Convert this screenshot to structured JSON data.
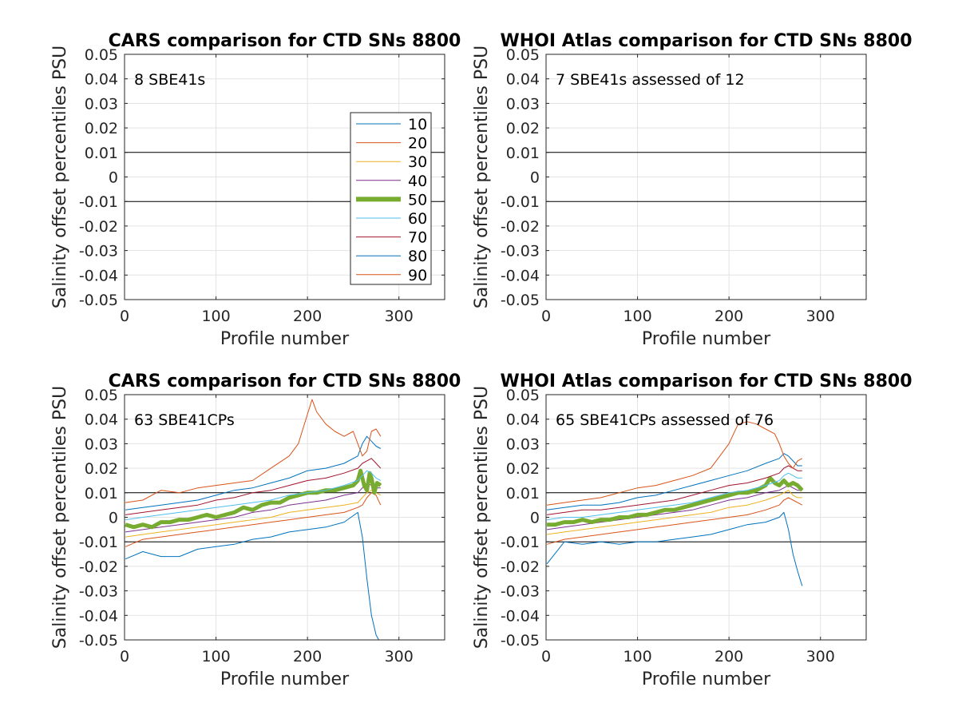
{
  "figure": {
    "panel_titles": [
      "CARS comparison for CTD SNs 8800",
      "WHOI Atlas comparison for CTD SNs 8800",
      "CARS comparison for CTD SNs 8800",
      "WHOI Atlas comparison for CTD SNs 8800"
    ]
  },
  "chart_data": [
    {
      "type": "line",
      "title": "CARS comparison for CTD SNs 8800",
      "xlabel": "Profile number",
      "ylabel": "Salinity offset percentiles PSU",
      "annotation": "8 SBE41s",
      "xlim": [
        0,
        350
      ],
      "ylim": [
        -0.05,
        0.05
      ],
      "xticks": [
        "0",
        "100",
        "200",
        "300"
      ],
      "yticks": [
        "-0.05",
        "-0.04",
        "-0.03",
        "-0.02",
        "-0.01",
        "0",
        "0.01",
        "0.02",
        "0.03",
        "0.04",
        "0.05"
      ],
      "grid": true,
      "reference_lines": [
        0.01,
        -0.01
      ],
      "legend": {
        "placement": "right",
        "entries": [
          "10",
          "20",
          "30",
          "40",
          "50",
          "60",
          "70",
          "80",
          "90"
        ]
      },
      "series": []
    },
    {
      "type": "line",
      "title": "WHOI Atlas comparison for CTD SNs 8800",
      "xlabel": "Profile number",
      "ylabel": "Salinity offset percentiles PSU",
      "annotation": "7 SBE41s assessed of 12",
      "xlim": [
        0,
        350
      ],
      "ylim": [
        -0.05,
        0.05
      ],
      "xticks": [
        "0",
        "100",
        "200",
        "300"
      ],
      "yticks": [
        "-0.05",
        "-0.04",
        "-0.03",
        "-0.02",
        "-0.01",
        "0",
        "0.01",
        "0.02",
        "0.03",
        "0.04",
        "0.05"
      ],
      "grid": true,
      "reference_lines": [
        0.01,
        -0.01
      ],
      "series": []
    },
    {
      "type": "line",
      "title": "CARS comparison for CTD SNs 8800",
      "xlabel": "Profile number",
      "ylabel": "Salinity offset percentiles PSU",
      "annotation": "63 SBE41CPs",
      "xlim": [
        0,
        350
      ],
      "ylim": [
        -0.05,
        0.05
      ],
      "xticks": [
        "0",
        "100",
        "200",
        "300"
      ],
      "yticks": [
        "-0.05",
        "-0.04",
        "-0.03",
        "-0.02",
        "-0.01",
        "0",
        "0.01",
        "0.02",
        "0.03",
        "0.04",
        "0.05"
      ],
      "grid": true,
      "reference_lines": [
        0.01,
        -0.01
      ],
      "series": [
        {
          "name": "10",
          "color": "#0072BD",
          "x": [
            1,
            20,
            40,
            60,
            80,
            100,
            120,
            140,
            160,
            180,
            200,
            220,
            240,
            255,
            260,
            265,
            270,
            275,
            278
          ],
          "y": [
            -0.017,
            -0.014,
            -0.016,
            -0.016,
            -0.013,
            -0.012,
            -0.011,
            -0.009,
            -0.008,
            -0.006,
            -0.005,
            -0.004,
            -0.002,
            0.002,
            -0.008,
            -0.025,
            -0.04,
            -0.048,
            -0.05
          ]
        },
        {
          "name": "20",
          "color": "#D95319",
          "x": [
            1,
            20,
            40,
            60,
            80,
            100,
            120,
            140,
            160,
            180,
            200,
            220,
            240,
            255,
            260,
            265,
            270,
            275,
            280
          ],
          "y": [
            -0.012,
            -0.009,
            -0.008,
            -0.007,
            -0.006,
            -0.005,
            -0.004,
            -0.003,
            -0.002,
            -0.001,
            0.0,
            0.001,
            0.002,
            0.004,
            0.005,
            0.008,
            0.01,
            0.009,
            0.005
          ]
        },
        {
          "name": "30",
          "color": "#EDB120",
          "x": [
            1,
            20,
            40,
            60,
            80,
            100,
            120,
            140,
            160,
            180,
            200,
            220,
            240,
            255,
            260,
            265,
            270,
            275,
            280
          ],
          "y": [
            -0.008,
            -0.007,
            -0.006,
            -0.005,
            -0.004,
            -0.003,
            -0.002,
            -0.001,
            0.0,
            0.002,
            0.003,
            0.004,
            0.005,
            0.006,
            0.008,
            0.01,
            0.011,
            0.01,
            0.009
          ]
        },
        {
          "name": "40",
          "color": "#7E2F8E",
          "x": [
            1,
            20,
            40,
            60,
            80,
            100,
            120,
            140,
            160,
            180,
            200,
            220,
            240,
            255,
            260,
            265,
            270,
            275,
            280
          ],
          "y": [
            -0.006,
            -0.005,
            -0.004,
            -0.003,
            -0.002,
            -0.001,
            0.0,
            0.002,
            0.003,
            0.005,
            0.006,
            0.007,
            0.009,
            0.01,
            0.012,
            0.014,
            0.013,
            0.012,
            0.012
          ]
        },
        {
          "name": "50",
          "color": "#77AC30",
          "x": [
            1,
            10,
            20,
            30,
            40,
            50,
            60,
            70,
            80,
            90,
            100,
            110,
            120,
            130,
            140,
            150,
            160,
            170,
            180,
            190,
            200,
            210,
            220,
            230,
            240,
            250,
            255,
            258,
            262,
            265,
            268,
            270,
            273,
            276,
            280
          ],
          "y": [
            -0.003,
            -0.004,
            -0.003,
            -0.004,
            -0.002,
            -0.002,
            -0.001,
            -0.001,
            0.0,
            0.001,
            0.0,
            0.001,
            0.002,
            0.004,
            0.003,
            0.005,
            0.006,
            0.006,
            0.008,
            0.009,
            0.01,
            0.01,
            0.011,
            0.011,
            0.012,
            0.013,
            0.015,
            0.019,
            0.013,
            0.011,
            0.018,
            0.016,
            0.01,
            0.014,
            0.013
          ]
        },
        {
          "name": "60",
          "color": "#4DBEEE",
          "x": [
            1,
            20,
            40,
            60,
            80,
            100,
            120,
            140,
            160,
            180,
            200,
            220,
            240,
            255,
            260,
            265,
            270,
            275,
            280
          ],
          "y": [
            -0.001,
            0.0,
            0.001,
            0.002,
            0.003,
            0.004,
            0.005,
            0.006,
            0.007,
            0.009,
            0.01,
            0.011,
            0.013,
            0.015,
            0.017,
            0.019,
            0.018,
            0.016,
            0.015
          ]
        },
        {
          "name": "70",
          "color": "#A2142F",
          "x": [
            1,
            20,
            40,
            60,
            80,
            100,
            120,
            140,
            160,
            180,
            200,
            220,
            240,
            255,
            260,
            265,
            270,
            275,
            280
          ],
          "y": [
            0.001,
            0.002,
            0.003,
            0.004,
            0.005,
            0.007,
            0.008,
            0.01,
            0.011,
            0.013,
            0.015,
            0.016,
            0.018,
            0.02,
            0.022,
            0.023,
            0.024,
            0.022,
            0.02
          ]
        },
        {
          "name": "80",
          "color": "#0072BD",
          "x": [
            1,
            20,
            40,
            60,
            80,
            100,
            120,
            140,
            160,
            180,
            200,
            220,
            240,
            255,
            260,
            265,
            270,
            275,
            280
          ],
          "y": [
            0.003,
            0.004,
            0.005,
            0.006,
            0.007,
            0.009,
            0.011,
            0.012,
            0.014,
            0.016,
            0.019,
            0.02,
            0.022,
            0.025,
            0.03,
            0.033,
            0.031,
            0.029,
            0.028
          ]
        },
        {
          "name": "90",
          "color": "#D95319",
          "x": [
            1,
            20,
            40,
            60,
            80,
            100,
            120,
            140,
            160,
            180,
            190,
            200,
            205,
            210,
            220,
            230,
            240,
            250,
            255,
            260,
            265,
            270,
            275,
            280
          ],
          "y": [
            0.006,
            0.007,
            0.011,
            0.01,
            0.012,
            0.013,
            0.014,
            0.015,
            0.02,
            0.025,
            0.03,
            0.042,
            0.048,
            0.043,
            0.038,
            0.035,
            0.033,
            0.035,
            0.03,
            0.025,
            0.027,
            0.035,
            0.036,
            0.033
          ]
        }
      ]
    },
    {
      "type": "line",
      "title": "WHOI Atlas comparison for CTD SNs 8800",
      "xlabel": "Profile number",
      "ylabel": "Salinity offset percentiles PSU",
      "annotation": "65 SBE41CPs assessed of 76",
      "xlim": [
        0,
        350
      ],
      "ylim": [
        -0.05,
        0.05
      ],
      "xticks": [
        "0",
        "100",
        "200",
        "300"
      ],
      "yticks": [
        "-0.05",
        "-0.04",
        "-0.03",
        "-0.02",
        "-0.01",
        "0",
        "0.01",
        "0.02",
        "0.03",
        "0.04",
        "0.05"
      ],
      "grid": true,
      "reference_lines": [
        0.01,
        -0.01
      ],
      "series": [
        {
          "name": "10",
          "color": "#0072BD",
          "x": [
            1,
            20,
            40,
            60,
            80,
            100,
            120,
            140,
            160,
            180,
            200,
            220,
            240,
            255,
            260,
            265,
            270,
            275,
            280
          ],
          "y": [
            -0.019,
            -0.01,
            -0.011,
            -0.01,
            -0.011,
            -0.01,
            -0.01,
            -0.009,
            -0.008,
            -0.007,
            -0.005,
            -0.003,
            -0.002,
            0.0,
            0.002,
            -0.005,
            -0.015,
            -0.022,
            -0.028
          ]
        },
        {
          "name": "20",
          "color": "#D95319",
          "x": [
            1,
            20,
            40,
            60,
            80,
            100,
            120,
            140,
            160,
            180,
            200,
            220,
            240,
            255,
            260,
            265,
            270,
            275,
            280
          ],
          "y": [
            -0.011,
            -0.009,
            -0.008,
            -0.007,
            -0.006,
            -0.005,
            -0.004,
            -0.003,
            -0.002,
            -0.001,
            0.0,
            0.001,
            0.003,
            0.005,
            0.007,
            0.008,
            0.007,
            0.006,
            0.005
          ]
        },
        {
          "name": "30",
          "color": "#EDB120",
          "x": [
            1,
            20,
            40,
            60,
            80,
            100,
            120,
            140,
            160,
            180,
            200,
            220,
            240,
            255,
            260,
            265,
            270,
            275,
            280
          ],
          "y": [
            -0.007,
            -0.006,
            -0.005,
            -0.004,
            -0.003,
            -0.002,
            -0.001,
            0.0,
            0.001,
            0.002,
            0.004,
            0.005,
            0.007,
            0.009,
            0.01,
            0.011,
            0.009,
            0.008,
            0.008
          ]
        },
        {
          "name": "40",
          "color": "#7E2F8E",
          "x": [
            1,
            20,
            40,
            60,
            80,
            100,
            120,
            140,
            160,
            180,
            200,
            220,
            240,
            255,
            260,
            265,
            270,
            275,
            280
          ],
          "y": [
            -0.005,
            -0.004,
            -0.003,
            -0.002,
            -0.001,
            0.0,
            0.001,
            0.002,
            0.003,
            0.005,
            0.007,
            0.008,
            0.01,
            0.011,
            0.012,
            0.013,
            0.012,
            0.011,
            0.011
          ]
        },
        {
          "name": "50",
          "color": "#77AC30",
          "x": [
            1,
            10,
            20,
            30,
            40,
            50,
            60,
            70,
            80,
            90,
            100,
            110,
            120,
            130,
            140,
            150,
            160,
            170,
            180,
            190,
            200,
            210,
            220,
            230,
            240,
            245,
            250,
            255,
            260,
            265,
            270,
            275,
            280
          ],
          "y": [
            -0.003,
            -0.003,
            -0.002,
            -0.002,
            -0.001,
            -0.002,
            -0.001,
            -0.001,
            0.0,
            0.0,
            0.001,
            0.001,
            0.002,
            0.003,
            0.003,
            0.004,
            0.005,
            0.006,
            0.007,
            0.008,
            0.009,
            0.01,
            0.01,
            0.011,
            0.013,
            0.016,
            0.014,
            0.013,
            0.015,
            0.013,
            0.014,
            0.013,
            0.011
          ]
        },
        {
          "name": "60",
          "color": "#4DBEEE",
          "x": [
            1,
            20,
            40,
            60,
            80,
            100,
            120,
            140,
            160,
            180,
            200,
            220,
            240,
            255,
            260,
            265,
            270,
            275,
            280
          ],
          "y": [
            -0.001,
            0.0,
            0.0,
            0.001,
            0.002,
            0.003,
            0.004,
            0.005,
            0.006,
            0.008,
            0.01,
            0.011,
            0.013,
            0.015,
            0.017,
            0.018,
            0.017,
            0.016,
            0.016
          ]
        },
        {
          "name": "70",
          "color": "#A2142F",
          "x": [
            1,
            20,
            40,
            60,
            80,
            100,
            120,
            140,
            160,
            180,
            200,
            220,
            240,
            255,
            260,
            265,
            270,
            275,
            280
          ],
          "y": [
            0.001,
            0.002,
            0.003,
            0.003,
            0.004,
            0.005,
            0.006,
            0.007,
            0.009,
            0.011,
            0.013,
            0.014,
            0.016,
            0.018,
            0.02,
            0.021,
            0.02,
            0.019,
            0.019
          ]
        },
        {
          "name": "80",
          "color": "#0072BD",
          "x": [
            1,
            20,
            40,
            60,
            80,
            100,
            120,
            140,
            160,
            180,
            200,
            220,
            240,
            255,
            260,
            265,
            270,
            275,
            280
          ],
          "y": [
            0.003,
            0.004,
            0.005,
            0.005,
            0.006,
            0.008,
            0.009,
            0.011,
            0.013,
            0.015,
            0.017,
            0.019,
            0.022,
            0.024,
            0.026,
            0.025,
            0.023,
            0.021,
            0.021
          ]
        },
        {
          "name": "90",
          "color": "#D95319",
          "x": [
            1,
            20,
            40,
            60,
            80,
            100,
            120,
            140,
            160,
            180,
            190,
            200,
            210,
            220,
            230,
            240,
            250,
            255,
            260,
            265,
            270,
            275,
            280
          ],
          "y": [
            0.005,
            0.006,
            0.007,
            0.008,
            0.01,
            0.012,
            0.013,
            0.015,
            0.017,
            0.02,
            0.025,
            0.03,
            0.038,
            0.039,
            0.038,
            0.036,
            0.034,
            0.03,
            0.025,
            0.022,
            0.02,
            0.023,
            0.024
          ]
        }
      ]
    }
  ]
}
